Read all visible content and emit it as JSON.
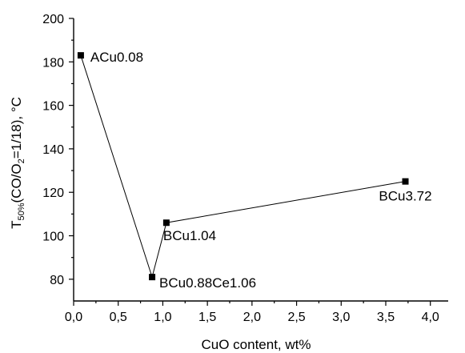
{
  "chart_data": {
    "type": "scatter",
    "xlabel": "CuO content, wt%",
    "ylabel": {
      "text": "T50%(CO/O2=1/18), °C",
      "parts": {
        "main": "T",
        "sub1": "50%",
        "paren_open": "(CO/O",
        "sub2": "2",
        "rest": "=1/18), °C"
      }
    },
    "xlim": [
      0.0,
      4.2
    ],
    "ylim": [
      70,
      200
    ],
    "x_ticks": [
      "0,0",
      "0,5",
      "1,0",
      "1,5",
      "2,0",
      "2,5",
      "3,0",
      "3,5",
      "4,0"
    ],
    "x_tick_values": [
      0.0,
      0.5,
      1.0,
      1.5,
      2.0,
      2.5,
      3.0,
      3.5,
      4.0
    ],
    "y_ticks": [
      "80",
      "100",
      "120",
      "140",
      "160",
      "180",
      "200"
    ],
    "y_tick_values": [
      80,
      100,
      120,
      140,
      160,
      180,
      200
    ],
    "series": [
      {
        "marker": "square",
        "line": "connected",
        "color": "#000000",
        "points": [
          {
            "x": 0.08,
            "y": 183,
            "label": "ACu0.08"
          },
          {
            "x": 0.88,
            "y": 81,
            "label": "BCu0.88Ce1.06"
          },
          {
            "x": 1.04,
            "y": 106,
            "label": "BCu1.04"
          },
          {
            "x": 3.72,
            "y": 125,
            "label": "BCu3.72"
          }
        ]
      }
    ],
    "grid": false,
    "legend": "none"
  }
}
